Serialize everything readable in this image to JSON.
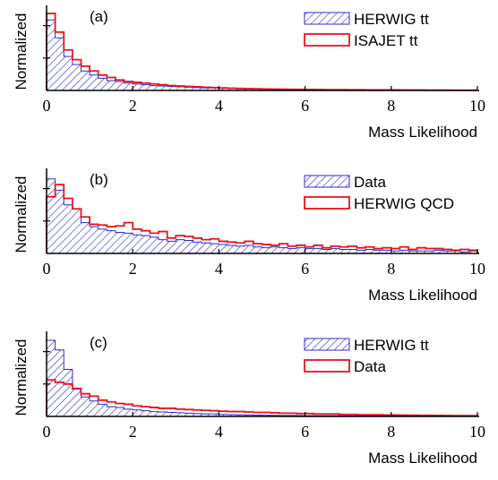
{
  "chart_data": [
    {
      "type": "histogram",
      "panel_label": "(a)",
      "xlabel": "Mass Likelihood",
      "ylabel": "Normalized",
      "xlim": [
        0,
        10
      ],
      "xticks": [
        "0",
        "2",
        "4",
        "6",
        "8",
        "10"
      ],
      "bin_width": 0.2,
      "legend_position": "top-right",
      "series": [
        {
          "name": "HERWIG tt",
          "style": "hatched",
          "color": "#2b2bd4",
          "values": [
            0.87,
            0.65,
            0.42,
            0.32,
            0.24,
            0.19,
            0.15,
            0.12,
            0.11,
            0.09,
            0.08,
            0.07,
            0.06,
            0.055,
            0.05,
            0.045,
            0.04,
            0.035,
            0.03,
            0.03,
            0.025,
            0.022,
            0.02,
            0.018,
            0.016,
            0.015,
            0.014,
            0.013,
            0.012,
            0.011,
            0.01,
            0.01,
            0.009,
            0.009,
            0.008,
            0.008,
            0.007,
            0.007,
            0.006,
            0.006,
            0.005,
            0.005,
            0.005,
            0.004,
            0.004,
            0.004,
            0.003,
            0.003,
            0.003,
            0.003
          ]
        },
        {
          "name": "ISAJET tt",
          "style": "outline",
          "color": "#e8141c",
          "values": [
            0.95,
            0.72,
            0.5,
            0.38,
            0.3,
            0.24,
            0.19,
            0.16,
            0.13,
            0.11,
            0.1,
            0.09,
            0.08,
            0.07,
            0.06,
            0.055,
            0.05,
            0.045,
            0.04,
            0.036,
            0.032,
            0.028,
            0.025,
            0.022,
            0.02,
            0.018,
            0.016,
            0.015,
            0.014,
            0.013,
            0.012,
            0.011,
            0.01,
            0.009,
            0.009,
            0.008,
            0.008,
            0.007,
            0.007,
            0.006,
            0.006,
            0.005,
            0.005,
            0.005,
            0.004,
            0.004,
            0.004,
            0.003,
            0.003,
            0.003
          ]
        }
      ]
    },
    {
      "type": "histogram",
      "panel_label": "(b)",
      "xlabel": "Mass Likelihood",
      "ylabel": "Normalized",
      "xlim": [
        0,
        10
      ],
      "xticks": [
        "0",
        "2",
        "4",
        "6",
        "8",
        "10"
      ],
      "bin_width": 0.2,
      "legend_position": "top-right",
      "series": [
        {
          "name": "Data",
          "style": "hatched",
          "color": "#2b2bd4",
          "values": [
            0.92,
            0.78,
            0.6,
            0.55,
            0.38,
            0.33,
            0.3,
            0.28,
            0.26,
            0.25,
            0.23,
            0.22,
            0.2,
            0.17,
            0.15,
            0.17,
            0.16,
            0.14,
            0.13,
            0.12,
            0.11,
            0.1,
            0.09,
            0.1,
            0.08,
            0.07,
            0.08,
            0.07,
            0.06,
            0.07,
            0.06,
            0.06,
            0.05,
            0.06,
            0.05,
            0.05,
            0.04,
            0.05,
            0.04,
            0.04,
            0.03,
            0.04,
            0.03,
            0.03,
            0.03,
            0.04,
            0.03,
            0.03,
            0.02,
            0.03
          ]
        },
        {
          "name": "HERWIG QCD",
          "style": "outline",
          "color": "#e8141c",
          "values": [
            0.7,
            0.85,
            0.68,
            0.55,
            0.45,
            0.36,
            0.35,
            0.33,
            0.34,
            0.38,
            0.3,
            0.28,
            0.25,
            0.27,
            0.19,
            0.22,
            0.21,
            0.19,
            0.17,
            0.18,
            0.15,
            0.14,
            0.13,
            0.15,
            0.12,
            0.11,
            0.1,
            0.12,
            0.09,
            0.1,
            0.08,
            0.1,
            0.07,
            0.09,
            0.08,
            0.09,
            0.07,
            0.08,
            0.06,
            0.07,
            0.06,
            0.08,
            0.05,
            0.07,
            0.06,
            0.06,
            0.05,
            0.04,
            0.05,
            0.04
          ]
        }
      ]
    },
    {
      "type": "histogram",
      "panel_label": "(c)",
      "xlabel": "Mass Likelihood",
      "ylabel": "Normalized",
      "xlim": [
        0,
        10
      ],
      "xticks": [
        "0",
        "2",
        "4",
        "6",
        "8",
        "10"
      ],
      "bin_width": 0.2,
      "legend_position": "top-right",
      "series": [
        {
          "name": "HERWIG tt",
          "style": "hatched",
          "color": "#2b2bd4",
          "values": [
            0.94,
            0.82,
            0.58,
            0.35,
            0.24,
            0.19,
            0.15,
            0.12,
            0.11,
            0.09,
            0.08,
            0.07,
            0.06,
            0.055,
            0.05,
            0.045,
            0.04,
            0.035,
            0.03,
            0.03,
            0.025,
            0.022,
            0.02,
            0.018,
            0.016,
            0.015,
            0.014,
            0.013,
            0.012,
            0.011,
            0.01,
            0.01,
            0.009,
            0.009,
            0.008,
            0.008,
            0.007,
            0.007,
            0.006,
            0.006,
            0.005,
            0.005,
            0.005,
            0.004,
            0.004,
            0.004,
            0.003,
            0.003,
            0.003,
            0.003
          ]
        },
        {
          "name": "Data",
          "style": "outline",
          "color": "#e8141c",
          "values": [
            0.45,
            0.42,
            0.4,
            0.34,
            0.28,
            0.25,
            0.2,
            0.18,
            0.16,
            0.15,
            0.13,
            0.12,
            0.11,
            0.1,
            0.1,
            0.09,
            0.085,
            0.08,
            0.075,
            0.07,
            0.065,
            0.06,
            0.06,
            0.055,
            0.05,
            0.05,
            0.045,
            0.04,
            0.04,
            0.035,
            0.035,
            0.03,
            0.03,
            0.03,
            0.025,
            0.025,
            0.02,
            0.02,
            0.02,
            0.018,
            0.018,
            0.016,
            0.015,
            0.014,
            0.013,
            0.012,
            0.011,
            0.01,
            0.01,
            0.01
          ]
        }
      ]
    }
  ]
}
